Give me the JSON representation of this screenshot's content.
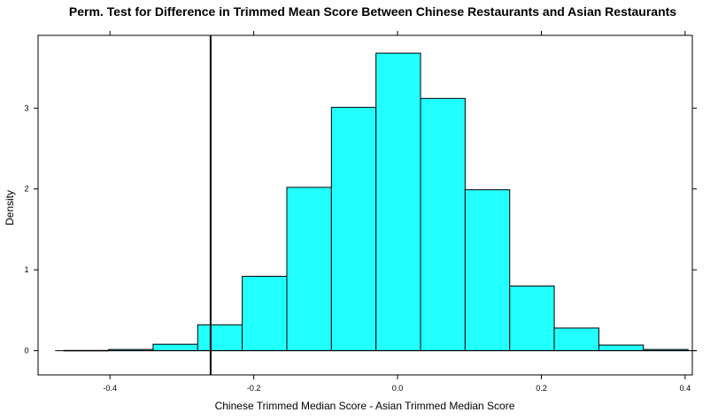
{
  "chart_data": {
    "type": "histogram",
    "title": "Perm. Test for Difference in Trimmed Mean Score Between Chinese Restaurants and Asian Restaurants",
    "xlabel": "Chinese Trimmed Median Score - Asian Trimmed Median Score",
    "ylabel": "Density",
    "xlim": [
      -0.5,
      0.41
    ],
    "ylim": [
      -0.3,
      3.9
    ],
    "x_ticks": [
      -0.4,
      -0.2,
      0.0,
      0.2,
      0.4
    ],
    "x_tick_labels": [
      "-0.4",
      "-0.2",
      "0.0",
      "0.2",
      "0.4"
    ],
    "y_ticks": [
      0,
      1,
      2,
      3
    ],
    "y_tick_labels": [
      "0",
      "1",
      "2",
      "3"
    ],
    "bins": [
      {
        "x0": -0.464,
        "x1": -0.402,
        "density": 0.003
      },
      {
        "x0": -0.402,
        "x1": -0.34,
        "density": 0.015
      },
      {
        "x0": -0.34,
        "x1": -0.278,
        "density": 0.08
      },
      {
        "x0": -0.278,
        "x1": -0.216,
        "density": 0.32
      },
      {
        "x0": -0.216,
        "x1": -0.154,
        "density": 0.92
      },
      {
        "x0": -0.154,
        "x1": -0.092,
        "density": 2.02
      },
      {
        "x0": -0.092,
        "x1": -0.03,
        "density": 3.01
      },
      {
        "x0": -0.03,
        "x1": 0.032,
        "density": 3.68
      },
      {
        "x0": 0.032,
        "x1": 0.094,
        "density": 3.12
      },
      {
        "x0": 0.094,
        "x1": 0.156,
        "density": 1.99
      },
      {
        "x0": 0.156,
        "x1": 0.218,
        "density": 0.8
      },
      {
        "x0": 0.218,
        "x1": 0.28,
        "density": 0.28
      },
      {
        "x0": 0.28,
        "x1": 0.342,
        "density": 0.07
      },
      {
        "x0": 0.342,
        "x1": 0.404,
        "density": 0.015
      }
    ],
    "observed_difference": -0.26,
    "grid": false,
    "colors": {
      "bar_fill": "#22FFFF",
      "bar_stroke": "#000000",
      "reference_line": "#000000",
      "frame": "#000000"
    }
  }
}
